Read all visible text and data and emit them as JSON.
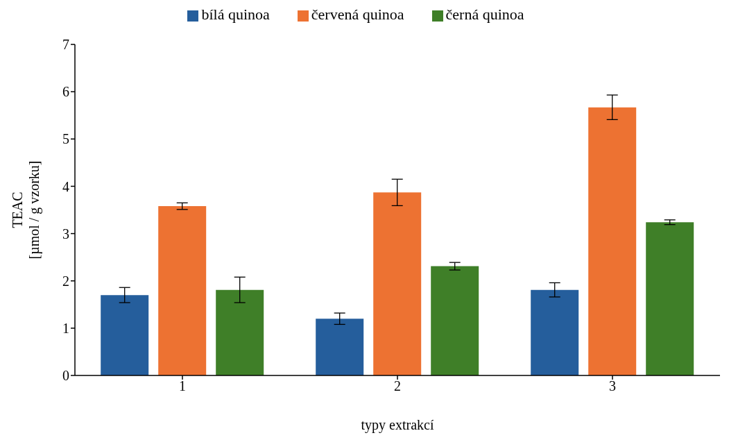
{
  "chart_data": {
    "type": "bar",
    "xlabel": "typy extrakcí",
    "ylabel": "TEAC\n[µmol / g vzorku]",
    "categories": [
      "1",
      "2",
      "3"
    ],
    "series": [
      {
        "name": "bílá quinoa",
        "color": "#255e9c",
        "values": [
          1.7,
          1.2,
          1.81
        ],
        "errors": [
          0.16,
          0.12,
          0.15
        ]
      },
      {
        "name": "červená quinoa",
        "color": "#ed7232",
        "values": [
          3.58,
          3.87,
          5.67
        ],
        "errors": [
          0.07,
          0.28,
          0.26
        ]
      },
      {
        "name": "černá quinoa",
        "color": "#3f7f28",
        "values": [
          1.81,
          2.31,
          3.24
        ],
        "errors": [
          0.27,
          0.08,
          0.05
        ]
      }
    ],
    "ylim": [
      0,
      7
    ],
    "yticks": [
      0,
      1,
      2,
      3,
      4,
      5,
      6,
      7
    ],
    "grid": false,
    "legend": "top"
  }
}
